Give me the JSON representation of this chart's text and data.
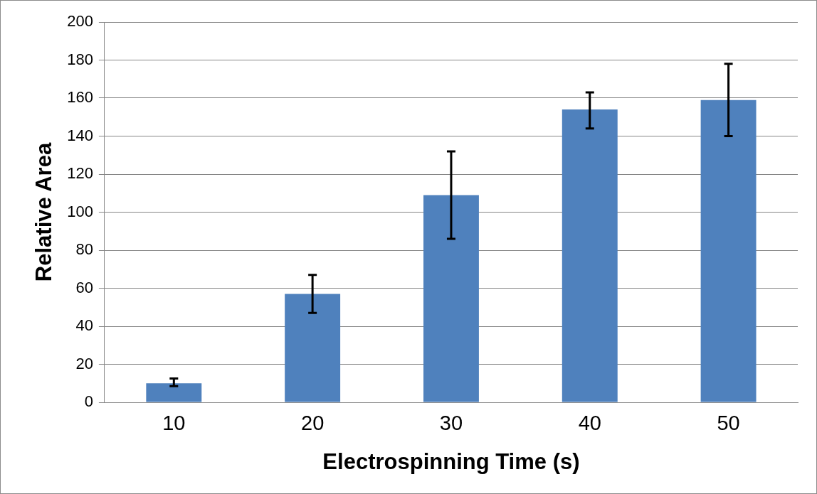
{
  "chart_data": {
    "type": "bar",
    "xlabel": "Electrospinning Time (s)",
    "ylabel": "Relative Area",
    "categories": [
      "10",
      "20",
      "30",
      "40",
      "50"
    ],
    "values": [
      10,
      57,
      109,
      154,
      159
    ],
    "errors": [
      [
        8.5,
        12.5
      ],
      [
        47,
        67
      ],
      [
        86,
        132
      ],
      [
        144,
        163
      ],
      [
        140,
        178
      ]
    ],
    "color": "#4f81bd",
    "ylim": [
      0,
      200
    ],
    "yticks": [
      0,
      20,
      40,
      60,
      80,
      100,
      120,
      140,
      160,
      180,
      200
    ],
    "grid": "y",
    "legend": false
  }
}
